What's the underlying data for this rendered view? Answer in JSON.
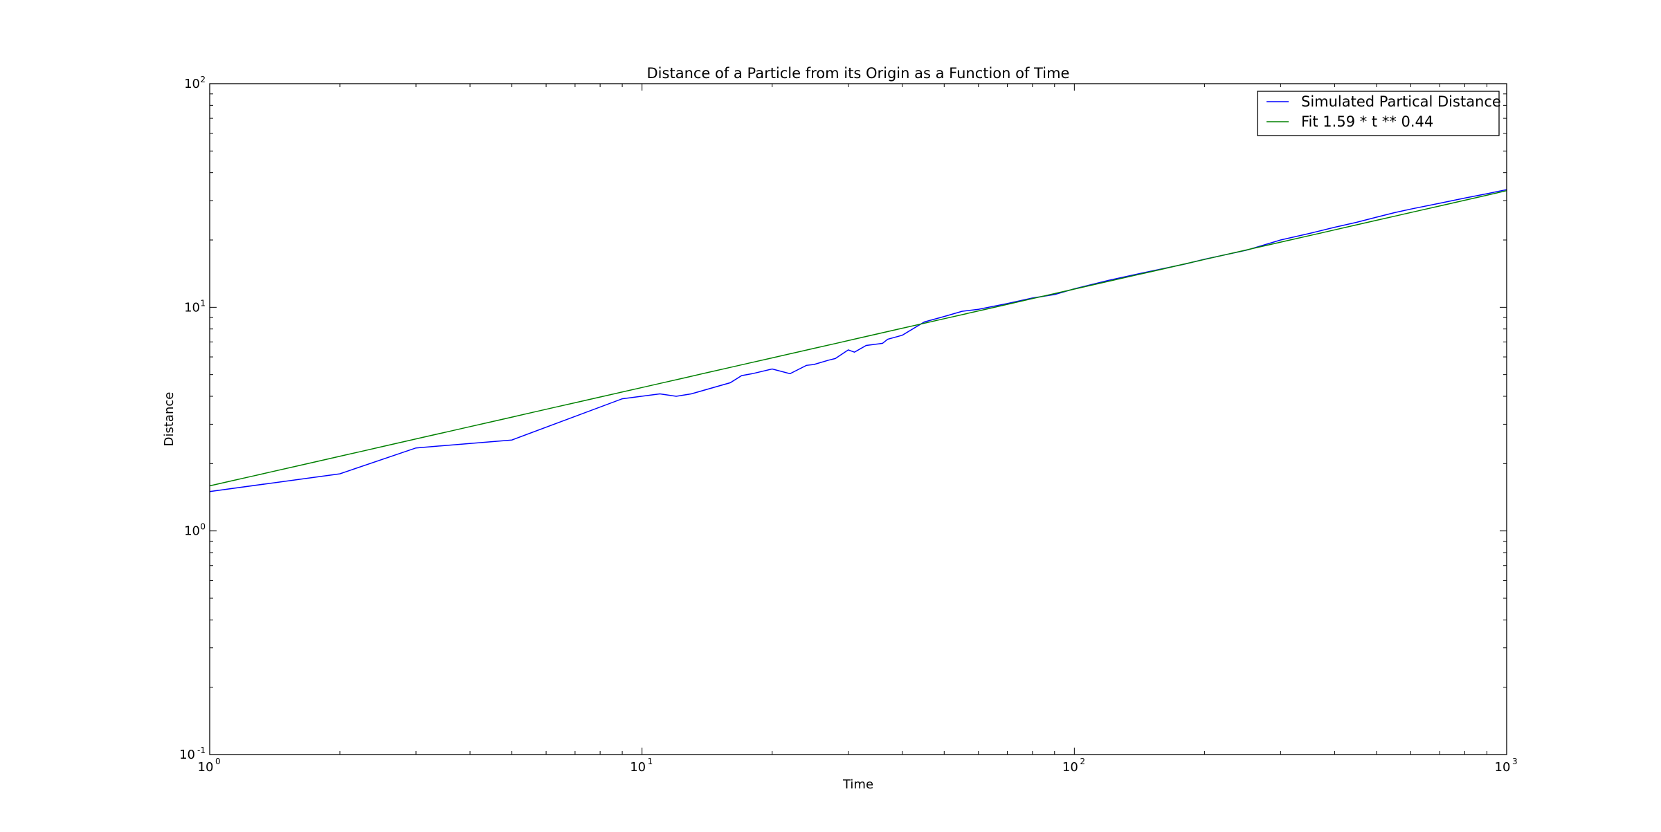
{
  "chart_data": {
    "type": "line",
    "title": "Distance of a Particle from its Origin as a Function of Time",
    "xlabel": "Time",
    "ylabel": "Distance",
    "xscale": "log",
    "yscale": "log",
    "xlim": [
      1,
      1000
    ],
    "ylim": [
      0.1,
      100
    ],
    "grid": false,
    "legend_position": "top-right",
    "x_ticks": [
      {
        "base": "10",
        "exp": "0",
        "value": 1
      },
      {
        "base": "10",
        "exp": "1",
        "value": 10
      },
      {
        "base": "10",
        "exp": "2",
        "value": 100
      },
      {
        "base": "10",
        "exp": "3",
        "value": 1000
      }
    ],
    "y_ticks": [
      {
        "base": "10",
        "exp": "-1",
        "value": 0.1
      },
      {
        "base": "10",
        "exp": "0",
        "value": 1
      },
      {
        "base": "10",
        "exp": "1",
        "value": 10
      },
      {
        "base": "10",
        "exp": "2",
        "value": 100
      }
    ],
    "series": [
      {
        "name": "Simulated Partical Distance",
        "color": "#0000ff",
        "x": [
          1,
          2,
          3,
          5,
          9,
          11,
          12,
          13,
          16,
          17,
          18,
          20,
          22,
          24,
          25,
          27,
          28,
          30,
          31,
          33,
          36,
          37,
          40,
          45,
          50,
          55,
          60,
          70,
          80,
          90,
          100,
          120,
          150,
          180,
          200,
          250,
          300,
          350,
          400,
          450,
          500,
          550,
          600,
          700,
          800,
          900,
          1000
        ],
        "y": [
          1.5,
          1.8,
          2.35,
          2.55,
          3.9,
          4.1,
          4.0,
          4.1,
          4.6,
          4.95,
          5.05,
          5.3,
          5.05,
          5.5,
          5.55,
          5.8,
          5.9,
          6.45,
          6.3,
          6.75,
          6.9,
          7.2,
          7.5,
          8.6,
          9.1,
          9.6,
          9.8,
          10.4,
          11.0,
          11.4,
          12.1,
          13.2,
          14.5,
          15.6,
          16.4,
          18.0,
          20.0,
          21.4,
          22.8,
          24.0,
          25.3,
          26.5,
          27.5,
          29.2,
          30.8,
          32.2,
          33.6
        ]
      },
      {
        "name": "Fit 1.59 * t ** 0.44",
        "color": "#008000",
        "fit": {
          "a": 1.59,
          "b": 0.44
        }
      }
    ]
  }
}
